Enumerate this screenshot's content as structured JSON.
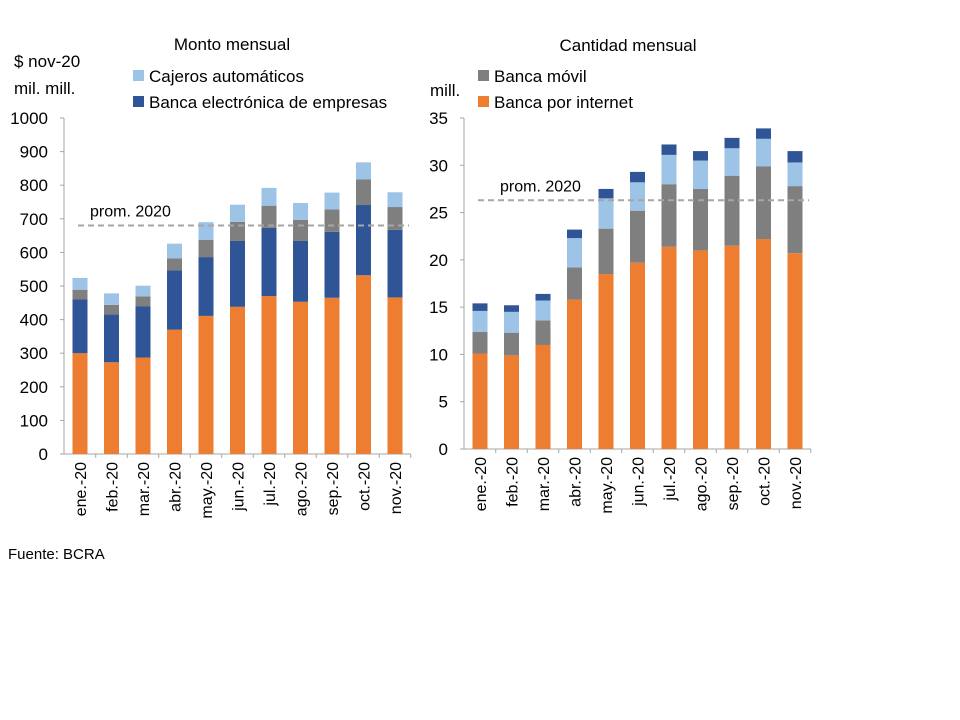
{
  "source": "Fuente: BCRA",
  "colors": {
    "internet": "#ED7D31",
    "empresas": "#2F5597",
    "movil": "#7F7F7F",
    "cajeros": "#9DC3E6",
    "avg": "#A6A6A6"
  },
  "chart_data": [
    {
      "type": "bar",
      "stacked": true,
      "title": "Monto mensual",
      "ylabel": "$ nov-20 mil. mill.",
      "ylabel_lines": [
        "$ nov-20",
        "mil. mill."
      ],
      "ylim": [
        0,
        1000
      ],
      "yticks": [
        0,
        100,
        200,
        300,
        400,
        500,
        600,
        700,
        800,
        900,
        1000
      ],
      "categories": [
        "ene.-20",
        "feb.-20",
        "mar.-20",
        "abr.-20",
        "may.-20",
        "jun.-20",
        "jul.-20",
        "ago.-20",
        "sep.-20",
        "oct.-20",
        "nov.-20"
      ],
      "legend": [
        {
          "label": "Cajeros automáticos",
          "key": "cajeros"
        },
        {
          "label": "Banca electrónica de empresas",
          "key": "empresas"
        }
      ],
      "series": [
        {
          "name": "Banca por internet",
          "key": "internet",
          "values": [
            300,
            273,
            287,
            370,
            411,
            438,
            470,
            453,
            465,
            532,
            466
          ]
        },
        {
          "name": "Banca electrónica de empresas",
          "key": "empresas",
          "values": [
            160,
            142,
            152,
            176,
            175,
            196,
            203,
            181,
            196,
            209,
            201
          ]
        },
        {
          "name": "Banca móvil",
          "key": "movil",
          "values": [
            29,
            29,
            30,
            36,
            51,
            57,
            66,
            63,
            67,
            76,
            68
          ]
        },
        {
          "name": "Cajeros automáticos",
          "key": "cajeros",
          "values": [
            35,
            34,
            32,
            44,
            53,
            51,
            53,
            50,
            50,
            51,
            44
          ]
        }
      ],
      "average": {
        "label": "prom. 2020",
        "value": 680
      }
    },
    {
      "type": "bar",
      "stacked": true,
      "title": "Cantidad mensual",
      "ylabel": "mill.",
      "ylabel_lines": [
        "mill."
      ],
      "ylim": [
        0,
        35
      ],
      "yticks": [
        0,
        5,
        10,
        15,
        20,
        25,
        30,
        35
      ],
      "categories": [
        "ene.-20",
        "feb.-20",
        "mar.-20",
        "abr.-20",
        "may.-20",
        "jun.-20",
        "jul.-20",
        "ago.-20",
        "sep.-20",
        "oct.-20",
        "nov.-20"
      ],
      "legend": [
        {
          "label": "Banca móvil",
          "key": "movil"
        },
        {
          "label": "Banca por internet",
          "key": "internet"
        }
      ],
      "series": [
        {
          "name": "Banca por internet",
          "key": "internet",
          "values": [
            10.1,
            9.9,
            11.0,
            15.8,
            18.5,
            19.7,
            21.4,
            21.0,
            21.5,
            22.2,
            20.7
          ]
        },
        {
          "name": "Banca móvil",
          "key": "movil",
          "values": [
            2.3,
            2.4,
            2.6,
            3.4,
            4.8,
            5.5,
            6.6,
            6.5,
            7.4,
            7.7,
            7.1
          ]
        },
        {
          "name": "Cajeros automáticos",
          "key": "cajeros",
          "values": [
            2.2,
            2.2,
            2.1,
            3.1,
            3.2,
            3.0,
            3.1,
            3.0,
            2.9,
            2.9,
            2.5
          ]
        },
        {
          "name": "Banca electrónica de empresas",
          "key": "empresas",
          "values": [
            0.8,
            0.7,
            0.7,
            0.9,
            1.0,
            1.1,
            1.1,
            1.0,
            1.1,
            1.1,
            1.2
          ]
        }
      ],
      "average": {
        "label": "prom. 2020",
        "value": 26.3
      }
    }
  ]
}
